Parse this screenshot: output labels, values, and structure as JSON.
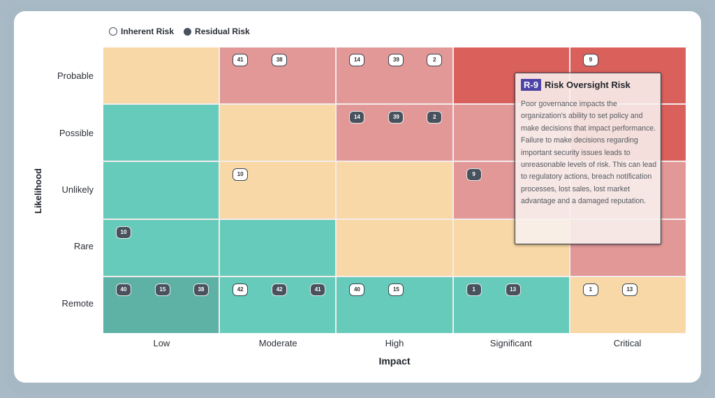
{
  "legend": {
    "inherent_label": "Inherent Risk",
    "residual_label": "Residual Risk"
  },
  "axes": {
    "y_title": "Likelihood",
    "x_title": "Impact",
    "y_labels": [
      "Probable",
      "Possible",
      "Unlikely",
      "Rare",
      "Remote"
    ],
    "x_labels": [
      "Low",
      "Moderate",
      "High",
      "Significant",
      "Critical"
    ]
  },
  "colors": {
    "low": "#66cbba",
    "low_highlight": "#5eb1a5",
    "medium": "#f8d8a6",
    "high": "#e39898",
    "critical": "#da605c",
    "residual_badge": "#48525e",
    "inherent_badge": "#ffffff",
    "tooltip_id_bg": "#4e44a8"
  },
  "tooltip": {
    "id": "R-9",
    "title": "Risk Oversight Risk",
    "description": "Poor governance impacts the organization's ability to set policy and make decisions that impact performance. Failure to make decisions regarding important security issues leads to unreasonable levels of risk. This can lead to regulatory actions, breach notification processes, lost sales, lost market advantage and a damaged reputation."
  },
  "chart_data": {
    "type": "heatmap",
    "title": "",
    "xlabel": "Impact",
    "ylabel": "Likelihood",
    "x_categories": [
      "Low",
      "Moderate",
      "High",
      "Significant",
      "Critical"
    ],
    "y_categories": [
      "Probable",
      "Possible",
      "Unlikely",
      "Rare",
      "Remote"
    ],
    "legend": [
      "Inherent Risk",
      "Residual Risk"
    ],
    "cell_colors": [
      [
        "medium",
        "high",
        "high",
        "critical",
        "critical"
      ],
      [
        "low",
        "medium",
        "high",
        "high",
        "critical"
      ],
      [
        "low",
        "medium",
        "medium",
        "high",
        "high"
      ],
      [
        "low",
        "low",
        "medium",
        "medium",
        "high"
      ],
      [
        "low",
        "low",
        "low",
        "low",
        "medium"
      ]
    ],
    "cells": [
      [
        {
          "inherent": [],
          "residual": []
        },
        {
          "inherent": [
            "41",
            "38"
          ],
          "residual": []
        },
        {
          "inherent": [
            "14",
            "39",
            "2"
          ],
          "residual": []
        },
        {
          "inherent": [],
          "residual": []
        },
        {
          "inherent": [
            "9"
          ],
          "residual": []
        }
      ],
      [
        {
          "inherent": [],
          "residual": []
        },
        {
          "inherent": [],
          "residual": []
        },
        {
          "inherent": [],
          "residual": [
            "14",
            "39",
            "2"
          ]
        },
        {
          "inherent": [],
          "residual": []
        },
        {
          "inherent": [],
          "residual": []
        }
      ],
      [
        {
          "inherent": [],
          "residual": []
        },
        {
          "inherent": [
            "10"
          ],
          "residual": []
        },
        {
          "inherent": [],
          "residual": []
        },
        {
          "inherent": [],
          "residual": [
            "9"
          ]
        },
        {
          "inherent": [],
          "residual": []
        }
      ],
      [
        {
          "inherent": [],
          "residual": [
            "10"
          ]
        },
        {
          "inherent": [],
          "residual": []
        },
        {
          "inherent": [],
          "residual": []
        },
        {
          "inherent": [],
          "residual": []
        },
        {
          "inherent": [],
          "residual": []
        }
      ],
      [
        {
          "inherent": [],
          "residual": [
            "40",
            "15",
            "38"
          ]
        },
        {
          "inherent": [
            "42"
          ],
          "residual": [
            "42",
            "41"
          ]
        },
        {
          "inherent": [
            "40",
            "15"
          ],
          "residual": []
        },
        {
          "inherent": [],
          "residual": [
            "1",
            "13"
          ]
        },
        {
          "inherent": [
            "1",
            "13"
          ],
          "residual": []
        }
      ]
    ]
  },
  "grid": {
    "rows": [
      {
        "cells": [
          {
            "color": "c-yellow",
            "badges": []
          },
          {
            "color": "c-pink",
            "badges": [
              {
                "t": "inh",
                "v": "41"
              },
              {
                "t": "inh",
                "v": "38"
              }
            ]
          },
          {
            "color": "c-pink",
            "badges": [
              {
                "t": "inh",
                "v": "14"
              },
              {
                "t": "inh",
                "v": "39"
              },
              {
                "t": "inh",
                "v": "2"
              }
            ]
          },
          {
            "color": "c-red",
            "badges": []
          },
          {
            "color": "c-red",
            "badges": [
              {
                "t": "inh",
                "v": "9"
              }
            ]
          }
        ]
      },
      {
        "cells": [
          {
            "color": "c-teal",
            "badges": []
          },
          {
            "color": "c-yellow",
            "badges": []
          },
          {
            "color": "c-pink",
            "badges": [
              {
                "t": "res",
                "v": "14"
              },
              {
                "t": "res",
                "v": "39"
              },
              {
                "t": "res",
                "v": "2"
              }
            ]
          },
          {
            "color": "c-pink",
            "badges": []
          },
          {
            "color": "c-red",
            "badges": []
          }
        ]
      },
      {
        "cells": [
          {
            "color": "c-teal",
            "badges": []
          },
          {
            "color": "c-yellow",
            "badges": [
              {
                "t": "inh",
                "v": "10"
              }
            ]
          },
          {
            "color": "c-yellow",
            "badges": []
          },
          {
            "color": "c-pink",
            "badges": [
              {
                "t": "res",
                "v": "9"
              }
            ]
          },
          {
            "color": "c-pink",
            "badges": []
          }
        ]
      },
      {
        "cells": [
          {
            "color": "c-teal",
            "badges": [
              {
                "t": "res",
                "v": "10"
              }
            ]
          },
          {
            "color": "c-teal",
            "badges": []
          },
          {
            "color": "c-yellow",
            "badges": []
          },
          {
            "color": "c-yellow",
            "badges": []
          },
          {
            "color": "c-pink",
            "badges": []
          }
        ]
      },
      {
        "cells": [
          {
            "color": "c-dteal",
            "badges": [
              {
                "t": "res",
                "v": "40"
              },
              {
                "t": "res",
                "v": "15"
              },
              {
                "t": "res",
                "v": "38"
              }
            ]
          },
          {
            "color": "c-teal",
            "badges": [
              {
                "t": "inh",
                "v": "42"
              },
              {
                "t": "res",
                "v": "42"
              },
              {
                "t": "res",
                "v": "41"
              }
            ]
          },
          {
            "color": "c-teal",
            "badges": [
              {
                "t": "inh",
                "v": "40"
              },
              {
                "t": "inh",
                "v": "15"
              }
            ]
          },
          {
            "color": "c-teal",
            "badges": [
              {
                "t": "res",
                "v": "1"
              },
              {
                "t": "res",
                "v": "13"
              }
            ]
          },
          {
            "color": "c-yellow",
            "badges": [
              {
                "t": "inh",
                "v": "1"
              },
              {
                "t": "inh",
                "v": "13"
              }
            ]
          }
        ]
      }
    ]
  }
}
